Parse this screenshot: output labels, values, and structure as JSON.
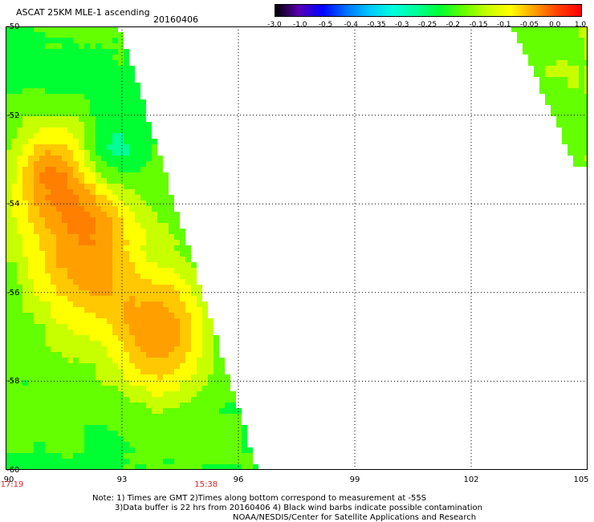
{
  "header": {
    "title": "ASCAT 25KM MLE-1 ascending",
    "date": "20160406"
  },
  "colorbar": {
    "labels": [
      "-3.0",
      "-1.0",
      "-0.5",
      "-0.4",
      "-0.35",
      "-0.3",
      "-0.25",
      "-0.2",
      "-0.15",
      "-0.1",
      "-0.05",
      "0.0",
      "1.0"
    ],
    "colors": [
      "#000000",
      "#5a00b4",
      "#0000ff",
      "#0070ff",
      "#00c8ff",
      "#00ffdc",
      "#00ff96",
      "#00ff32",
      "#64ff00",
      "#c8ff00",
      "#ffff00",
      "#ffa000",
      "#ff4000",
      "#ff0000"
    ]
  },
  "chart_data": {
    "type": "heatmap",
    "title": "ASCAT 25KM MLE-1 ascending",
    "x_ticks": [
      "90",
      "93",
      "96",
      "99",
      "102",
      "105"
    ],
    "y_ticks": [
      "-50",
      "-52",
      "-54",
      "-56",
      "-58",
      "-60"
    ],
    "xlim": [
      90,
      105
    ],
    "ylim": [
      -60,
      -50
    ],
    "x_values": [
      90,
      93,
      96,
      99,
      102,
      105
    ],
    "y_values": [
      -50,
      -52,
      -54,
      -56,
      -58,
      -60
    ],
    "grid": true,
    "time_labels": [
      {
        "x": 90,
        "text": "17:19"
      },
      {
        "x": 95,
        "text": "15:38"
      }
    ],
    "swaths": [
      {
        "description": "left swath",
        "lon_range": [
          90,
          97.2
        ],
        "lat_range": [
          -60,
          -50
        ]
      },
      {
        "description": "right swath",
        "lon_range": [
          102.8,
          105
        ],
        "lat_range": [
          -53.2,
          -50
        ]
      }
    ]
  },
  "notes": {
    "line1": "Note: 1) Times are GMT 2)Times along bottom correspond to measurement at -55S",
    "line2": "3)Data buffer is 22 hrs from 20160406 4) Black wind barbs indicate possible contamination",
    "line3": "NOAA/NESDIS/Center for Satellite Applications and Research"
  }
}
